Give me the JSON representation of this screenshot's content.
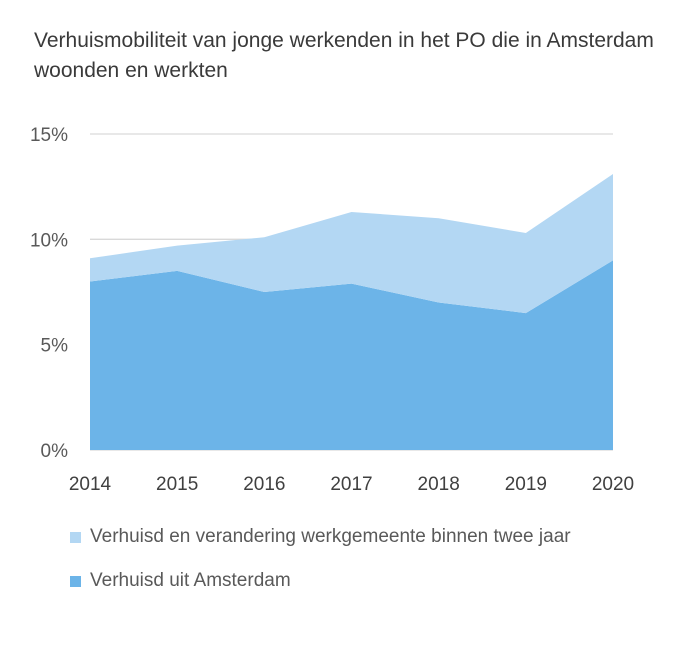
{
  "chart_data": {
    "type": "area",
    "stacked": true,
    "title": "Verhuismobiliteit van jonge werkenden in het PO die in Amsterdam woonden en werkten",
    "x": [
      "2014",
      "2015",
      "2016",
      "2017",
      "2018",
      "2019",
      "2020"
    ],
    "y_ticks": [
      "0%",
      "5%",
      "10%",
      "15%"
    ],
    "ylim": [
      0,
      15
    ],
    "grid": true,
    "legend_position": "bottom",
    "series": [
      {
        "name": "Verhuisd uit Amsterdam",
        "values": [
          8.0,
          8.5,
          7.5,
          7.9,
          7.0,
          6.5,
          9.0
        ],
        "color": "#6cb4e8"
      },
      {
        "name": "Verhuisd en verandering werkgemeente binnen twee jaar",
        "values": [
          1.1,
          1.2,
          2.6,
          3.4,
          4.0,
          3.8,
          4.1
        ],
        "color": "#b3d7f3"
      }
    ]
  }
}
